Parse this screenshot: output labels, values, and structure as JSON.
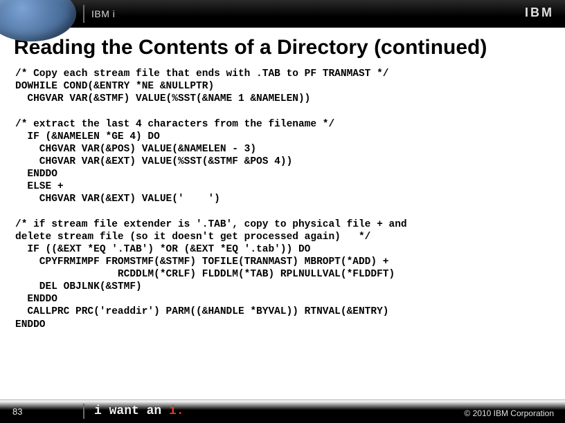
{
  "header": {
    "product_label": "IBM i",
    "logo_text": "IBM"
  },
  "title": "Reading the Contents of a Directory  (continued)",
  "code": {
    "block1_comment": "/* Copy each stream file that ends with .TAB to PF TRANMAST */",
    "block1_l1": "DOWHILE COND(&ENTRY *NE &NULLPTR)",
    "block1_l2": "  CHGVAR VAR(&STMF) VALUE(%SST(&NAME 1 &NAMELEN))",
    "block2_comment": "/* extract the last 4 characters from the filename */",
    "block2_l1": "  IF (&NAMELEN *GE 4) DO",
    "block2_l2": "    CHGVAR VAR(&POS) VALUE(&NAMELEN - 3)",
    "block2_l3": "    CHGVAR VAR(&EXT) VALUE(%SST(&STMF &POS 4))",
    "block2_l4": "  ENDDO",
    "block2_l5": "  ELSE +",
    "block2_l6": "    CHGVAR VAR(&EXT) VALUE('    ')",
    "block3_comment_l1": "/* if stream file extender is '.TAB', copy to physical file + and",
    "block3_comment_l2": "delete stream file (so it doesn't get processed again)   */",
    "block3_l1": "  IF ((&EXT *EQ '.TAB') *OR (&EXT *EQ '.tab')) DO",
    "block3_l2": "    CPYFRMIMPF FROMSTMF(&STMF) TOFILE(TRANMAST) MBROPT(*ADD) +",
    "block3_l3": "                 RCDDLM(*CRLF) FLDDLM(*TAB) RPLNULLVAL(*FLDDFT)",
    "block3_l4": "    DEL OBJLNK(&STMF)",
    "block3_l5": "  ENDDO",
    "block3_l6": "  CALLPRC PRC('readdir') PARM((&HANDLE *BYVAL)) RTNVAL(&ENTRY)",
    "block3_l7": "ENDDO"
  },
  "footer": {
    "slide_number": "83",
    "tagline_prefix": "i want an ",
    "tagline_i": "i.",
    "copyright": "© 2010 IBM Corporation"
  },
  "colors": {
    "accent_blue": "#5a7fad",
    "accent_red": "#e23a2e",
    "header_bg": "#000000",
    "text": "#000000"
  }
}
